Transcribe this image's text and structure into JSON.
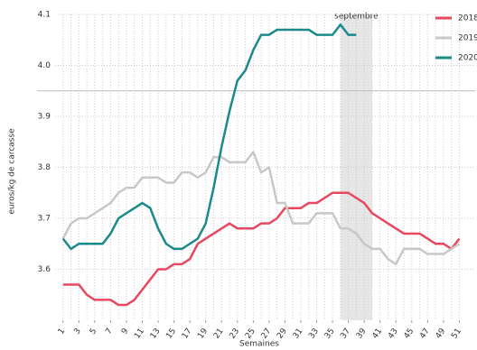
{
  "chart_data": {
    "type": "line",
    "x": [
      1,
      2,
      3,
      4,
      5,
      6,
      7,
      8,
      9,
      10,
      11,
      12,
      13,
      14,
      15,
      16,
      17,
      18,
      19,
      20,
      21,
      22,
      23,
      24,
      25,
      26,
      27,
      28,
      29,
      30,
      31,
      32,
      33,
      34,
      35,
      36,
      37,
      38,
      39,
      40,
      41,
      42,
      43,
      44,
      45,
      46,
      47,
      48,
      49,
      50,
      51
    ],
    "series": [
      {
        "name": "2018",
        "color": "#e8485f",
        "values": [
          3.57,
          3.57,
          3.57,
          3.55,
          3.54,
          3.54,
          3.54,
          3.53,
          3.53,
          3.54,
          3.56,
          3.58,
          3.6,
          3.6,
          3.61,
          3.61,
          3.62,
          3.65,
          3.66,
          3.67,
          3.68,
          3.69,
          3.68,
          3.68,
          3.68,
          3.69,
          3.69,
          3.7,
          3.72,
          3.72,
          3.72,
          3.73,
          3.73,
          3.74,
          3.75,
          3.75,
          3.75,
          3.74,
          3.73,
          3.71,
          3.7,
          3.69,
          3.68,
          3.67,
          3.67,
          3.67,
          3.66,
          3.65,
          3.65,
          3.64,
          3.66
        ]
      },
      {
        "name": "2019",
        "color": "#c8c8c8",
        "values": [
          3.66,
          3.69,
          3.7,
          3.7,
          3.71,
          3.72,
          3.73,
          3.75,
          3.76,
          3.76,
          3.78,
          3.78,
          3.78,
          3.77,
          3.77,
          3.79,
          3.79,
          3.78,
          3.79,
          3.82,
          3.82,
          3.81,
          3.81,
          3.81,
          3.83,
          3.79,
          3.8,
          3.73,
          3.73,
          3.69,
          3.69,
          3.69,
          3.71,
          3.71,
          3.71,
          3.68,
          3.68,
          3.67,
          3.65,
          3.64,
          3.64,
          3.62,
          3.61,
          3.64,
          3.64,
          3.64,
          3.63,
          3.63,
          3.63,
          3.64,
          3.65
        ]
      },
      {
        "name": "2020",
        "color": "#1a8a8a",
        "values": [
          3.66,
          3.64,
          3.65,
          3.65,
          3.65,
          3.65,
          3.67,
          3.7,
          3.71,
          3.72,
          3.73,
          3.72,
          3.68,
          3.65,
          3.64,
          3.64,
          3.65,
          3.66,
          3.69,
          3.76,
          3.84,
          3.91,
          3.97,
          3.99,
          4.03,
          4.06,
          4.06,
          4.07,
          4.07,
          4.07,
          4.07,
          4.07,
          4.06,
          4.06,
          4.06,
          4.08,
          4.06,
          4.06,
          null,
          null,
          null,
          null,
          null,
          null,
          null,
          null,
          null,
          null,
          null,
          null,
          null
        ]
      }
    ],
    "xlim": [
      0,
      53
    ],
    "xticks": [
      1,
      3,
      5,
      7,
      9,
      11,
      13,
      15,
      17,
      19,
      21,
      23,
      25,
      27,
      29,
      31,
      33,
      35,
      37,
      39,
      41,
      43,
      45,
      47,
      49,
      51
    ],
    "ylim": [
      3.5,
      4.1
    ],
    "yticks": [
      3.6,
      3.7,
      3.8,
      3.9,
      {
        "value": 4,
        "label": "4.0"
      },
      4.1
    ],
    "x_label": "Semaines",
    "y_label": "euros/kg de carcasse",
    "annotation": {
      "text": "septembre",
      "xrange": [
        36,
        40
      ]
    },
    "reference_line": 3.95,
    "grid": true,
    "legend": "top-right"
  }
}
